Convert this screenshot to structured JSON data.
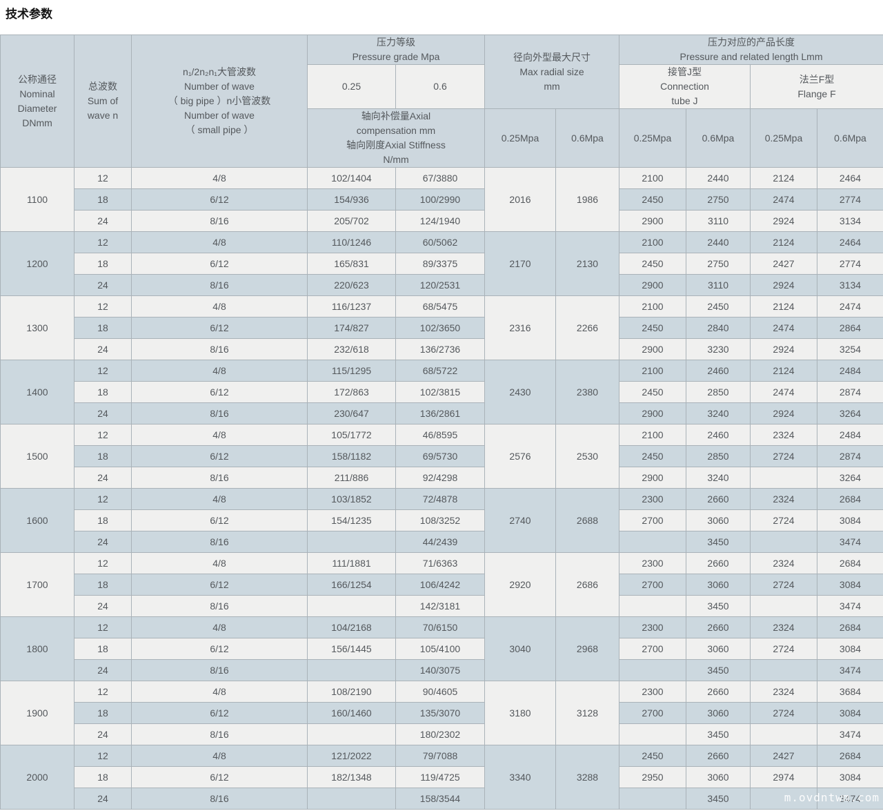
{
  "page": {
    "title": "技术参数",
    "watermark": "m.ovdntwm.com"
  },
  "colors": {
    "header_bg": "#cdd7de",
    "stripe_light": "#f0f0ef",
    "stripe_blue": "#ccd8df",
    "hdr_light": "#f0f0ef",
    "border": "#a9b2b8",
    "text": "#54585c"
  },
  "table": {
    "header": {
      "nominal_diameter": "公称通径\nNominal\nDiameter\nDNmm",
      "sum_of_wave": "总波数\nSum of\nwave n",
      "wave_number": "n₁/2n₂n₁大管波数\nNumber of wave\n（ big pipe ）n小管波数\nNumber of wave\n（ small pipe ）",
      "pressure_grade": "压力等级\nPressure grade Mpa",
      "grade_025": "0.25",
      "grade_06": "0.6",
      "axial": "轴向补偿量Axial\ncompensation mm\n轴向刚度Axial Stiffness\nN/mm",
      "max_radial": "径向外型最大尺寸\nMax radial size\nmm",
      "pressure_length": "压力对应的产品长度\nPressure and related length Lmm",
      "connection_tube": "接管J型\nConnection\ntube J",
      "flange": "法兰F型\nFlange F",
      "mpa_025": "0.25Mpa",
      "mpa_06": "0.6Mpa"
    },
    "blocks": [
      {
        "dn": "1100",
        "radial_025": "2016",
        "radial_06": "1986",
        "rows": [
          {
            "waves": "12",
            "pipe": "4/8",
            "comp_025": "102/1404",
            "comp_06": "67/3880",
            "j_025": "2100",
            "j_06": "2440",
            "f_025": "2124",
            "f_06": "2464"
          },
          {
            "waves": "18",
            "pipe": "6/12",
            "comp_025": "154/936",
            "comp_06": "100/2990",
            "j_025": "2450",
            "j_06": "2750",
            "f_025": "2474",
            "f_06": "2774"
          },
          {
            "waves": "24",
            "pipe": "8/16",
            "comp_025": "205/702",
            "comp_06": "124/1940",
            "j_025": "2900",
            "j_06": "3110",
            "f_025": "2924",
            "f_06": "3134"
          }
        ]
      },
      {
        "dn": "1200",
        "radial_025": "2170",
        "radial_06": "2130",
        "rows": [
          {
            "waves": "12",
            "pipe": "4/8",
            "comp_025": "110/1246",
            "comp_06": "60/5062",
            "j_025": "2100",
            "j_06": "2440",
            "f_025": "2124",
            "f_06": "2464"
          },
          {
            "waves": "18",
            "pipe": "6/12",
            "comp_025": "165/831",
            "comp_06": "89/3375",
            "j_025": "2450",
            "j_06": "2750",
            "f_025": "2427",
            "f_06": "2774"
          },
          {
            "waves": "24",
            "pipe": "8/16",
            "comp_025": "220/623",
            "comp_06": "120/2531",
            "j_025": "2900",
            "j_06": "3110",
            "f_025": "2924",
            "f_06": "3134"
          }
        ]
      },
      {
        "dn": "1300",
        "radial_025": "2316",
        "radial_06": "2266",
        "rows": [
          {
            "waves": "12",
            "pipe": "4/8",
            "comp_025": "116/1237",
            "comp_06": "68/5475",
            "j_025": "2100",
            "j_06": "2450",
            "f_025": "2124",
            "f_06": "2474"
          },
          {
            "waves": "18",
            "pipe": "6/12",
            "comp_025": "174/827",
            "comp_06": "102/3650",
            "j_025": "2450",
            "j_06": "2840",
            "f_025": "2474",
            "f_06": "2864"
          },
          {
            "waves": "24",
            "pipe": "8/16",
            "comp_025": "232/618",
            "comp_06": "136/2736",
            "j_025": "2900",
            "j_06": "3230",
            "f_025": "2924",
            "f_06": "3254"
          }
        ]
      },
      {
        "dn": "1400",
        "radial_025": "2430",
        "radial_06": "2380",
        "rows": [
          {
            "waves": "12",
            "pipe": "4/8",
            "comp_025": "115/1295",
            "comp_06": "68/5722",
            "j_025": "2100",
            "j_06": "2460",
            "f_025": "2124",
            "f_06": "2484"
          },
          {
            "waves": "18",
            "pipe": "6/12",
            "comp_025": "172/863",
            "comp_06": "102/3815",
            "j_025": "2450",
            "j_06": "2850",
            "f_025": "2474",
            "f_06": "2874"
          },
          {
            "waves": "24",
            "pipe": "8/16",
            "comp_025": "230/647",
            "comp_06": "136/2861",
            "j_025": "2900",
            "j_06": "3240",
            "f_025": "2924",
            "f_06": "3264"
          }
        ]
      },
      {
        "dn": "1500",
        "radial_025": "2576",
        "radial_06": "2530",
        "rows": [
          {
            "waves": "12",
            "pipe": "4/8",
            "comp_025": "105/1772",
            "comp_06": "46/8595",
            "j_025": "2100",
            "j_06": "2460",
            "f_025": "2324",
            "f_06": "2484"
          },
          {
            "waves": "18",
            "pipe": "6/12",
            "comp_025": "158/1182",
            "comp_06": "69/5730",
            "j_025": "2450",
            "j_06": "2850",
            "f_025": "2724",
            "f_06": "2874"
          },
          {
            "waves": "24",
            "pipe": "8/16",
            "comp_025": "211/886",
            "comp_06": "92/4298",
            "j_025": "2900",
            "j_06": "3240",
            "f_025": "",
            "f_06": "3264"
          }
        ]
      },
      {
        "dn": "1600",
        "radial_025": "2740",
        "radial_06": "2688",
        "rows": [
          {
            "waves": "12",
            "pipe": "4/8",
            "comp_025": "103/1852",
            "comp_06": "72/4878",
            "j_025": "2300",
            "j_06": "2660",
            "f_025": "2324",
            "f_06": "2684"
          },
          {
            "waves": "18",
            "pipe": "6/12",
            "comp_025": "154/1235",
            "comp_06": "108/3252",
            "j_025": "2700",
            "j_06": "3060",
            "f_025": "2724",
            "f_06": "3084"
          },
          {
            "waves": "24",
            "pipe": "8/16",
            "comp_025": "",
            "comp_06": "44/2439",
            "j_025": "",
            "j_06": "3450",
            "f_025": "",
            "f_06": "3474"
          }
        ]
      },
      {
        "dn": "1700",
        "radial_025": "2920",
        "radial_06": "2686",
        "rows": [
          {
            "waves": "12",
            "pipe": "4/8",
            "comp_025": "111/1881",
            "comp_06": "71/6363",
            "j_025": "2300",
            "j_06": "2660",
            "f_025": "2324",
            "f_06": "2684"
          },
          {
            "waves": "18",
            "pipe": "6/12",
            "comp_025": "166/1254",
            "comp_06": "106/4242",
            "j_025": "2700",
            "j_06": "3060",
            "f_025": "2724",
            "f_06": "3084"
          },
          {
            "waves": "24",
            "pipe": "8/16",
            "comp_025": "",
            "comp_06": "142/3181",
            "j_025": "",
            "j_06": "3450",
            "f_025": "",
            "f_06": "3474"
          }
        ]
      },
      {
        "dn": "1800",
        "radial_025": "3040",
        "radial_06": "2968",
        "rows": [
          {
            "waves": "12",
            "pipe": "4/8",
            "comp_025": "104/2168",
            "comp_06": "70/6150",
            "j_025": "2300",
            "j_06": "2660",
            "f_025": "2324",
            "f_06": "2684"
          },
          {
            "waves": "18",
            "pipe": "6/12",
            "comp_025": "156/1445",
            "comp_06": "105/4100",
            "j_025": "2700",
            "j_06": "3060",
            "f_025": "2724",
            "f_06": "3084"
          },
          {
            "waves": "24",
            "pipe": "8/16",
            "comp_025": "",
            "comp_06": "140/3075",
            "j_025": "",
            "j_06": "3450",
            "f_025": "",
            "f_06": "3474"
          }
        ]
      },
      {
        "dn": "1900",
        "radial_025": "3180",
        "radial_06": "3128",
        "rows": [
          {
            "waves": "12",
            "pipe": "4/8",
            "comp_025": "108/2190",
            "comp_06": "90/4605",
            "j_025": "2300",
            "j_06": "2660",
            "f_025": "2324",
            "f_06": "3684"
          },
          {
            "waves": "18",
            "pipe": "6/12",
            "comp_025": "160/1460",
            "comp_06": "135/3070",
            "j_025": "2700",
            "j_06": "3060",
            "f_025": "2724",
            "f_06": "3084"
          },
          {
            "waves": "24",
            "pipe": "8/16",
            "comp_025": "",
            "comp_06": "180/2302",
            "j_025": "",
            "j_06": "3450",
            "f_025": "",
            "f_06": "3474"
          }
        ]
      },
      {
        "dn": "2000",
        "radial_025": "3340",
        "radial_06": "3288",
        "rows": [
          {
            "waves": "12",
            "pipe": "4/8",
            "comp_025": "121/2022",
            "comp_06": "79/7088",
            "j_025": "2450",
            "j_06": "2660",
            "f_025": "2427",
            "f_06": "2684"
          },
          {
            "waves": "18",
            "pipe": "6/12",
            "comp_025": "182/1348",
            "comp_06": "119/4725",
            "j_025": "2950",
            "j_06": "3060",
            "f_025": "2974",
            "f_06": "3084"
          },
          {
            "waves": "24",
            "pipe": "8/16",
            "comp_025": "",
            "comp_06": "158/3544",
            "j_025": "",
            "j_06": "3450",
            "f_025": "",
            "f_06": "3474"
          }
        ]
      }
    ]
  }
}
